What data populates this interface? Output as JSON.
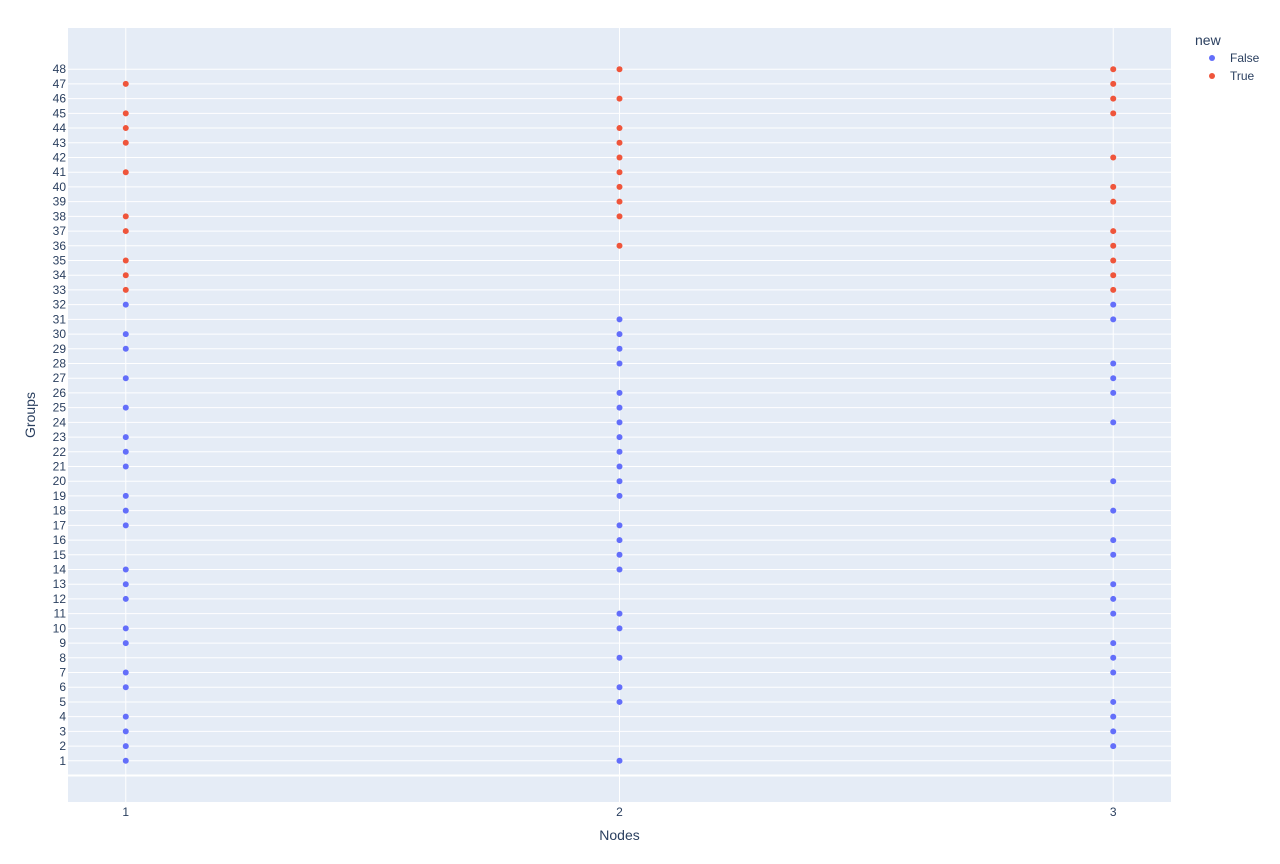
{
  "chart_data": {
    "type": "scatter",
    "xlabel": "Nodes",
    "ylabel": "Groups",
    "x_ticks": [
      1,
      2,
      3
    ],
    "y_ticks": [
      1,
      2,
      3,
      4,
      5,
      6,
      7,
      8,
      9,
      10,
      11,
      12,
      13,
      14,
      15,
      16,
      17,
      18,
      19,
      20,
      21,
      22,
      23,
      24,
      25,
      26,
      27,
      28,
      29,
      30,
      31,
      32,
      33,
      34,
      35,
      36,
      37,
      38,
      39,
      40,
      41,
      42,
      43,
      44,
      45,
      46,
      47,
      48
    ],
    "xlim": [
      0.883,
      3.117
    ],
    "ylim": [
      -1.8,
      50.8
    ],
    "grid": true,
    "legend": {
      "title": "new",
      "placement": "top-right",
      "entries": [
        {
          "label": "False",
          "color": "#636efa"
        },
        {
          "label": "True",
          "color": "#ef553b"
        }
      ]
    },
    "series": [
      {
        "name": "False",
        "color": "#636efa",
        "points": [
          [
            1,
            1
          ],
          [
            1,
            2
          ],
          [
            1,
            3
          ],
          [
            1,
            4
          ],
          [
            1,
            6
          ],
          [
            1,
            7
          ],
          [
            1,
            9
          ],
          [
            1,
            10
          ],
          [
            1,
            12
          ],
          [
            1,
            13
          ],
          [
            1,
            14
          ],
          [
            1,
            17
          ],
          [
            1,
            18
          ],
          [
            1,
            19
          ],
          [
            1,
            21
          ],
          [
            1,
            22
          ],
          [
            1,
            23
          ],
          [
            1,
            25
          ],
          [
            1,
            27
          ],
          [
            1,
            29
          ],
          [
            1,
            30
          ],
          [
            1,
            32
          ],
          [
            2,
            1
          ],
          [
            2,
            5
          ],
          [
            2,
            6
          ],
          [
            2,
            8
          ],
          [
            2,
            10
          ],
          [
            2,
            11
          ],
          [
            2,
            14
          ],
          [
            2,
            15
          ],
          [
            2,
            16
          ],
          [
            2,
            17
          ],
          [
            2,
            19
          ],
          [
            2,
            20
          ],
          [
            2,
            21
          ],
          [
            2,
            22
          ],
          [
            2,
            23
          ],
          [
            2,
            24
          ],
          [
            2,
            25
          ],
          [
            2,
            26
          ],
          [
            2,
            28
          ],
          [
            2,
            29
          ],
          [
            2,
            30
          ],
          [
            2,
            31
          ],
          [
            3,
            2
          ],
          [
            3,
            3
          ],
          [
            3,
            4
          ],
          [
            3,
            5
          ],
          [
            3,
            7
          ],
          [
            3,
            8
          ],
          [
            3,
            9
          ],
          [
            3,
            11
          ],
          [
            3,
            12
          ],
          [
            3,
            13
          ],
          [
            3,
            15
          ],
          [
            3,
            16
          ],
          [
            3,
            18
          ],
          [
            3,
            20
          ],
          [
            3,
            24
          ],
          [
            3,
            26
          ],
          [
            3,
            27
          ],
          [
            3,
            28
          ],
          [
            3,
            31
          ],
          [
            3,
            32
          ]
        ]
      },
      {
        "name": "True",
        "color": "#ef553b",
        "points": [
          [
            1,
            33
          ],
          [
            1,
            34
          ],
          [
            1,
            35
          ],
          [
            1,
            37
          ],
          [
            1,
            38
          ],
          [
            1,
            41
          ],
          [
            1,
            43
          ],
          [
            1,
            44
          ],
          [
            1,
            45
          ],
          [
            1,
            47
          ],
          [
            2,
            36
          ],
          [
            2,
            38
          ],
          [
            2,
            39
          ],
          [
            2,
            40
          ],
          [
            2,
            41
          ],
          [
            2,
            42
          ],
          [
            2,
            43
          ],
          [
            2,
            44
          ],
          [
            2,
            46
          ],
          [
            2,
            48
          ],
          [
            3,
            33
          ],
          [
            3,
            34
          ],
          [
            3,
            35
          ],
          [
            3,
            36
          ],
          [
            3,
            37
          ],
          [
            3,
            39
          ],
          [
            3,
            40
          ],
          [
            3,
            42
          ],
          [
            3,
            45
          ],
          [
            3,
            46
          ],
          [
            3,
            47
          ],
          [
            3,
            48
          ]
        ]
      }
    ]
  },
  "colors": {
    "plot_background": "#e5ecf6",
    "grid": "#ffffff",
    "text": "#2a3f5f"
  }
}
